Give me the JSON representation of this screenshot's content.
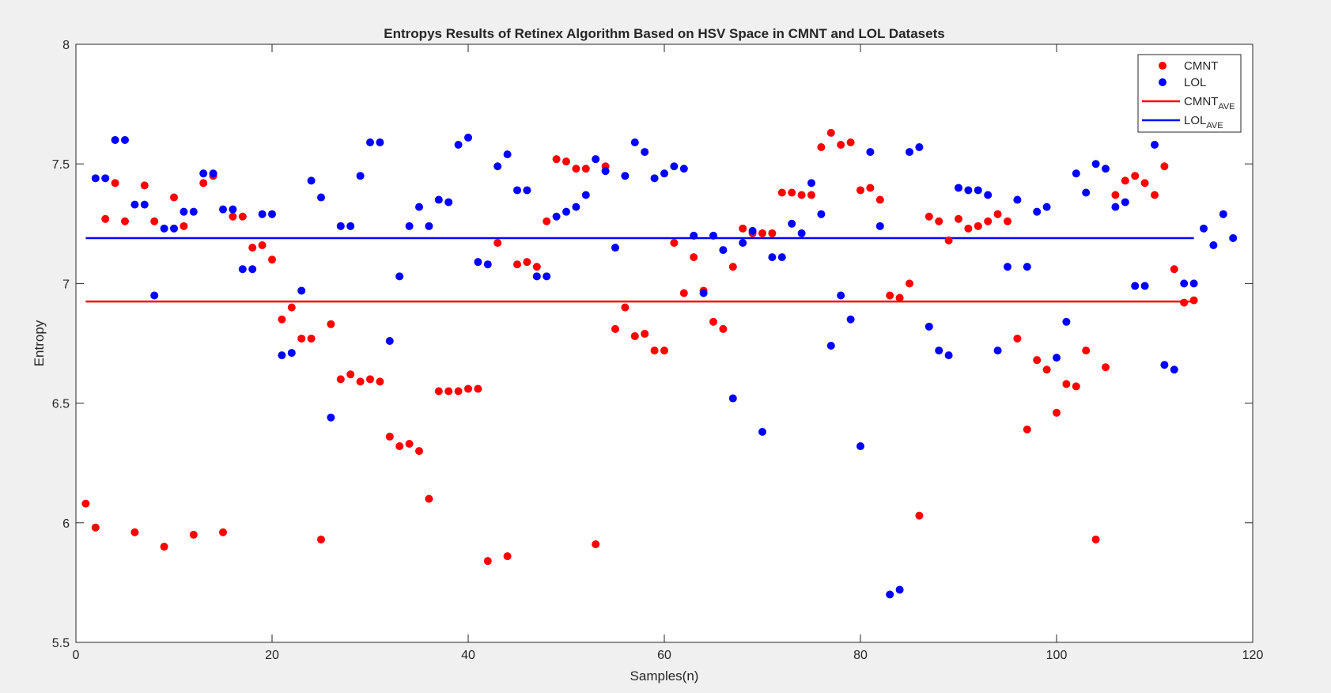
{
  "chart_data": {
    "type": "scatter",
    "title": "Entropys Results of Retinex Algorithm Based on HSV Space in CMNT and LOL Datasets",
    "xlabel": "Samples(n)",
    "ylabel": "Entropy",
    "xlim": [
      0,
      120
    ],
    "ylim": [
      5.5,
      8
    ],
    "xticks": [
      "0",
      "20",
      "40",
      "60",
      "80",
      "100",
      "120"
    ],
    "yticks": [
      "5.5",
      "6",
      "6.5",
      "7",
      "7.5",
      "8"
    ],
    "grid": false,
    "legend": "top-right",
    "series": [
      {
        "name": "CMNT",
        "type": "scatter",
        "color": "#ff0000",
        "x": [
          1,
          2,
          3,
          4,
          5,
          6,
          7,
          8,
          9,
          10,
          11,
          12,
          13,
          14,
          15,
          16,
          17,
          18,
          19,
          20,
          21,
          22,
          23,
          24,
          25,
          26,
          27,
          28,
          29,
          30,
          31,
          32,
          33,
          34,
          35,
          36,
          37,
          38,
          39,
          40,
          41,
          42,
          43,
          44,
          45,
          46,
          47,
          48,
          49,
          50,
          51,
          52,
          53,
          54,
          55,
          56,
          57,
          58,
          59,
          60,
          61,
          62,
          63,
          64,
          65,
          66,
          67,
          68,
          69,
          70,
          71,
          72,
          73,
          74,
          75,
          76,
          77,
          78,
          79,
          80,
          81,
          82,
          83,
          84,
          85,
          86,
          87,
          88,
          89,
          90,
          91,
          92,
          93,
          94,
          95,
          96,
          97,
          98,
          99,
          100,
          101,
          102,
          103,
          104,
          105,
          106,
          107,
          108,
          109,
          110,
          111,
          112,
          113,
          114
        ],
        "y": [
          6.08,
          5.98,
          7.27,
          7.42,
          7.26,
          5.96,
          7.41,
          7.26,
          5.9,
          7.36,
          7.24,
          5.95,
          7.42,
          7.45,
          5.96,
          7.28,
          7.28,
          7.15,
          7.16,
          7.1,
          6.85,
          6.9,
          6.77,
          6.77,
          5.93,
          6.83,
          6.6,
          6.62,
          6.59,
          6.6,
          6.59,
          6.36,
          6.32,
          6.33,
          6.3,
          6.1,
          6.55,
          6.55,
          6.55,
          6.56,
          6.56,
          5.84,
          7.17,
          5.86,
          7.08,
          7.09,
          7.07,
          7.26,
          7.52,
          7.51,
          7.48,
          7.48,
          5.91,
          7.49,
          6.81,
          6.9,
          6.78,
          6.79,
          6.72,
          6.72,
          7.17,
          6.96,
          7.11,
          6.97,
          6.84,
          6.81,
          7.07,
          7.23,
          7.21,
          7.21,
          7.21,
          7.38,
          7.38,
          7.37,
          7.37,
          7.57,
          7.63,
          7.58,
          7.59,
          7.39,
          7.4,
          7.35,
          6.95,
          6.94,
          7.0,
          6.03,
          7.28,
          7.26,
          7.18,
          7.27,
          7.23,
          7.24,
          7.26,
          7.29,
          7.26,
          6.77,
          6.39,
          6.68,
          6.64,
          6.46,
          6.58,
          6.57,
          6.72,
          5.93,
          6.65,
          7.37,
          7.43,
          7.45,
          7.42,
          7.37,
          7.49,
          7.06,
          6.92,
          6.93
        ]
      },
      {
        "name": "LOL",
        "type": "scatter",
        "color": "#0000ff",
        "x": [
          2,
          3,
          4,
          5,
          6,
          7,
          8,
          9,
          10,
          11,
          12,
          13,
          14,
          15,
          16,
          17,
          18,
          19,
          20,
          21,
          22,
          23,
          24,
          25,
          26,
          27,
          28,
          29,
          30,
          31,
          32,
          33,
          34,
          35,
          36,
          37,
          38,
          39,
          40,
          41,
          42,
          43,
          44,
          45,
          46,
          47,
          48,
          49,
          50,
          51,
          52,
          53,
          54,
          55,
          56,
          57,
          58,
          59,
          60,
          61,
          62,
          63,
          64,
          65,
          66,
          67,
          68,
          69,
          70,
          71,
          72,
          73,
          74,
          75,
          76,
          77,
          78,
          79,
          80,
          81,
          82,
          83,
          84,
          85,
          86,
          87,
          88,
          89,
          90,
          91,
          92,
          93,
          94,
          95,
          96,
          97,
          98,
          99,
          100,
          101,
          102,
          103,
          104,
          105,
          106,
          107,
          108,
          109,
          110,
          111,
          112,
          113,
          114,
          115,
          116,
          117,
          118
        ],
        "y": [
          7.44,
          7.44,
          7.6,
          7.6,
          7.33,
          7.33,
          6.95,
          7.23,
          7.23,
          7.3,
          7.3,
          7.46,
          7.46,
          7.31,
          7.31,
          7.06,
          7.06,
          7.29,
          7.29,
          6.7,
          6.71,
          6.97,
          7.43,
          7.36,
          6.44,
          7.24,
          7.24,
          7.45,
          7.59,
          7.59,
          6.76,
          7.03,
          7.24,
          7.32,
          7.24,
          7.35,
          7.34,
          7.58,
          7.61,
          7.09,
          7.08,
          7.49,
          7.54,
          7.39,
          7.39,
          7.03,
          7.03,
          7.28,
          7.3,
          7.32,
          7.37,
          7.52,
          7.47,
          7.15,
          7.45,
          7.59,
          7.55,
          7.44,
          7.46,
          7.49,
          7.48,
          7.2,
          6.96,
          7.2,
          7.14,
          6.52,
          7.17,
          7.22,
          6.38,
          7.11,
          7.11,
          7.25,
          7.21,
          7.42,
          7.29,
          6.74,
          6.95,
          6.85,
          6.32,
          7.55,
          7.24,
          5.7,
          5.72,
          7.55,
          7.57,
          6.82,
          6.72,
          6.7,
          7.4,
          7.39,
          7.39,
          7.37,
          6.72,
          7.07,
          7.35,
          7.07,
          7.3,
          7.32,
          6.69,
          6.84,
          7.46,
          7.38,
          7.5,
          7.48,
          7.32,
          7.34,
          6.99,
          6.99,
          7.58,
          6.66,
          6.64,
          7.0,
          7.0,
          7.23,
          7.16,
          7.29,
          7.19
        ]
      },
      {
        "name": "CMNT",
        "name_subscript": "AVE",
        "type": "line",
        "color": "#ff0000",
        "x": [
          1,
          114
        ],
        "y": [
          6.925,
          6.925
        ]
      },
      {
        "name": "LOL",
        "name_subscript": "AVE",
        "type": "line",
        "color": "#0000ff",
        "x": [
          1,
          114
        ],
        "y": [
          7.19,
          7.19
        ]
      }
    ]
  }
}
